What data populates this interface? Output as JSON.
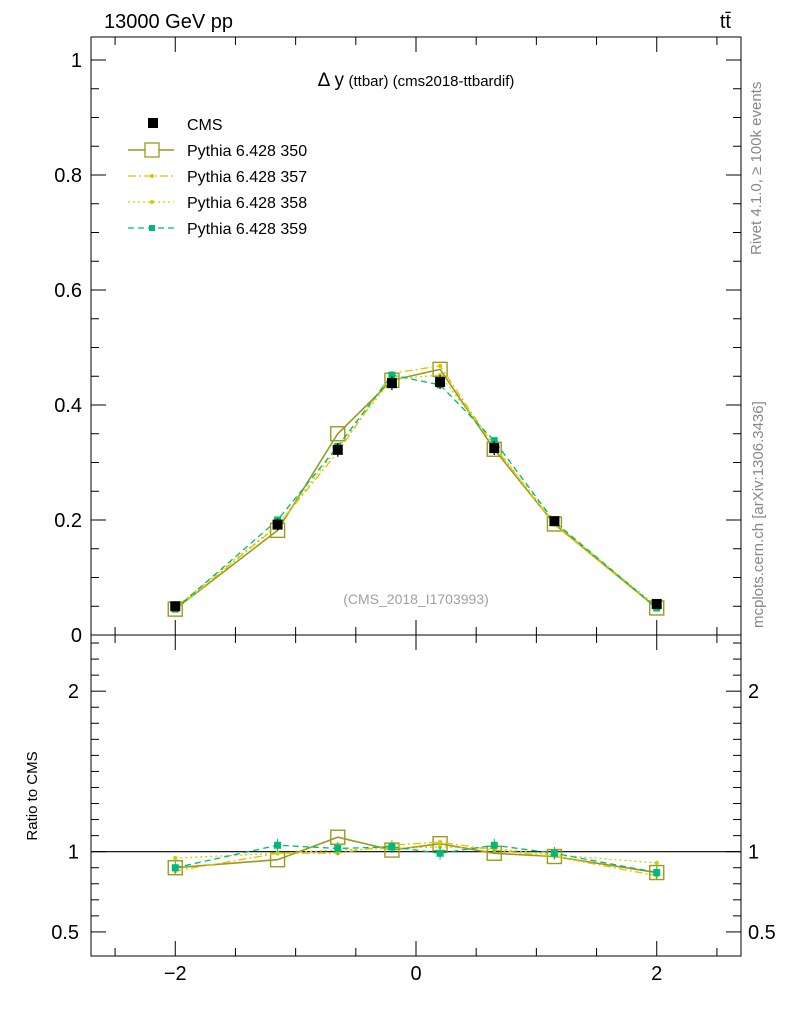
{
  "header": {
    "energy_label": "13000 GeV pp",
    "process_label": "tt̄",
    "side_label_top": "Rivet 4.1.0, ≥ 100k events",
    "side_label_bottom": "mcplots.cern.ch [arXiv:1306.3436]",
    "watermark": "(CMS_2018_I1703993)"
  },
  "chart_data": {
    "type": "line",
    "title_symbol": "Δ y",
    "title_rest": "(ttbar) (cms2018-ttbardif)",
    "xlim": [
      -2.7,
      2.7
    ],
    "x_ticks": [
      -2,
      0,
      2
    ],
    "x_tick_labels": [
      "−2",
      "0",
      "2"
    ],
    "main": {
      "ylim": [
        0,
        1.04
      ],
      "y_ticks": [
        0,
        0.2,
        0.4,
        0.6,
        0.8,
        1
      ],
      "y_tick_labels": [
        "0",
        "0.2",
        "0.4",
        "0.6",
        "0.8",
        "1"
      ]
    },
    "ratio": {
      "ylabel": "Ratio to CMS",
      "ylim": [
        0.35,
        2.35
      ],
      "y_ticks": [
        0.5,
        1,
        2
      ],
      "y_tick_labels": [
        "0.5",
        "1",
        "2"
      ]
    },
    "x": [
      -2.0,
      -1.15,
      -0.65,
      -0.2,
      0.2,
      0.65,
      1.15,
      2.0
    ],
    "data": {
      "name": "CMS",
      "values": [
        0.05,
        0.192,
        0.322,
        0.438,
        0.44,
        0.325,
        0.198,
        0.054
      ],
      "errors": [
        0.004,
        0.01,
        0.012,
        0.012,
        0.012,
        0.012,
        0.008,
        0.004
      ]
    },
    "series": [
      {
        "name": "Pythia 6.428 350",
        "color": "#9a9a1e",
        "dash": "",
        "marker": "open-square",
        "values": [
          0.045,
          0.182,
          0.35,
          0.443,
          0.462,
          0.323,
          0.193,
          0.047
        ],
        "ratio": [
          0.9,
          0.95,
          1.09,
          1.01,
          1.05,
          0.99,
          0.97,
          0.87
        ]
      },
      {
        "name": "Pythia 6.428 357",
        "color": "#e8c000",
        "dash": "8,3,2,3",
        "marker": "small-dot",
        "values": [
          0.044,
          0.19,
          0.318,
          0.455,
          0.468,
          0.328,
          0.192,
          0.046
        ],
        "ratio": [
          0.88,
          0.99,
          0.99,
          1.04,
          1.06,
          1.01,
          0.97,
          0.85
        ]
      },
      {
        "name": "Pythia 6.428 358",
        "color": "#c8d400",
        "dash": "2,3",
        "marker": "small-dot",
        "values": [
          0.048,
          0.191,
          0.325,
          0.445,
          0.452,
          0.33,
          0.195,
          0.05
        ],
        "ratio": [
          0.96,
          0.99,
          1.01,
          1.02,
          1.03,
          1.02,
          0.98,
          0.93
        ]
      },
      {
        "name": "Pythia 6.428 359",
        "color": "#00b878",
        "dash": "6,4",
        "marker": "filled-square",
        "values": [
          0.045,
          0.2,
          0.328,
          0.452,
          0.435,
          0.338,
          0.197,
          0.047
        ],
        "ratio": [
          0.9,
          1.04,
          1.02,
          1.03,
          0.99,
          1.04,
          0.99,
          0.87
        ]
      }
    ],
    "legend_position": "top-left"
  }
}
